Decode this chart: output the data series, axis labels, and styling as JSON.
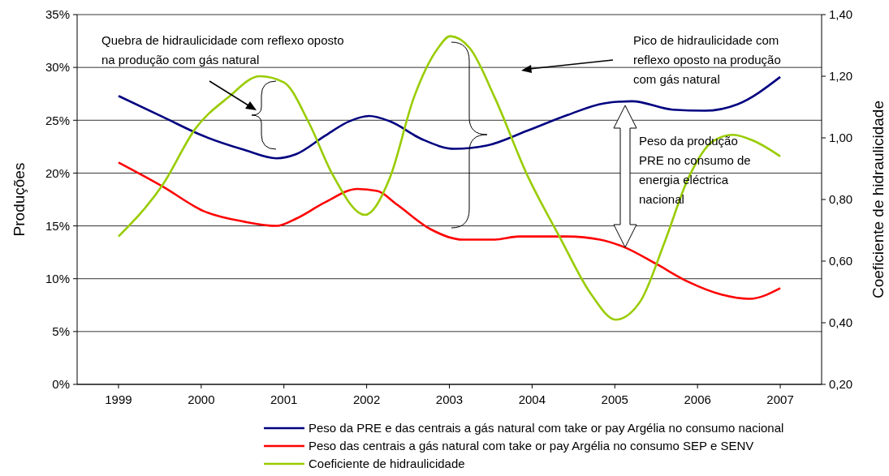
{
  "chart_data": {
    "type": "line",
    "xlabel": null,
    "ylabel": "Produções",
    "y2label": "Coeficiente de hidraulicidade",
    "xlim": [
      1998.5,
      2007.5
    ],
    "xticks": [
      1999,
      2000,
      2001,
      2002,
      2003,
      2004,
      2005,
      2006,
      2007
    ],
    "ylim": [
      0,
      35
    ],
    "yticks": [
      {
        "value": 0,
        "label": "0%"
      },
      {
        "value": 5,
        "label": "5%"
      },
      {
        "value": 10,
        "label": "10%"
      },
      {
        "value": 15,
        "label": "15%"
      },
      {
        "value": 20,
        "label": "20%"
      },
      {
        "value": 25,
        "label": "25%"
      },
      {
        "value": 30,
        "label": "30%"
      },
      {
        "value": 35,
        "label": "35%"
      }
    ],
    "y2lim": [
      0.2,
      1.4
    ],
    "y2ticks": [
      {
        "value": 0.2,
        "label": "0,20"
      },
      {
        "value": 0.4,
        "label": "0,40"
      },
      {
        "value": 0.6,
        "label": "0,60"
      },
      {
        "value": 0.8,
        "label": "0,80"
      },
      {
        "value": 1.0,
        "label": "1,00"
      },
      {
        "value": 1.2,
        "label": "1,20"
      },
      {
        "value": 1.4,
        "label": "1,40"
      }
    ],
    "grid": "y",
    "legend": "bottom",
    "marker": "none",
    "line_style": "solid",
    "series": [
      {
        "name": "Peso da PRE e das centrais a gás natural com take or pay Argélia no consumo nacional",
        "color": "#000080",
        "x": [
          1999,
          1999.54,
          2000.03,
          2000.52,
          2000.91,
          2001.15,
          2001.49,
          2001.79,
          2002.03,
          2002.28,
          2002.67,
          2003.06,
          2003.45,
          2003.94,
          2004.43,
          2004.87,
          2005.21,
          2005.7,
          2006.09,
          2006.48,
          2007
        ],
        "values": [
          27.3,
          25.3,
          23.5,
          22.2,
          21.4,
          21.8,
          23.5,
          24.9,
          25.4,
          24.9,
          23.2,
          22.3,
          22.6,
          24.0,
          25.5,
          26.6,
          26.8,
          26.0,
          25.9,
          26.5,
          29.1
        ]
      },
      {
        "name": "Peso das centrais a gás natural com take or pay Argélia no consumo SEP e SENV",
        "color": "#ff0000",
        "x": [
          1999,
          1999.54,
          2000.03,
          2000.52,
          2000.91,
          2001.15,
          2001.49,
          2001.89,
          2002.13,
          2002.37,
          2002.77,
          2003.16,
          2003.55,
          2003.84,
          2004.43,
          2004.82,
          2005.11,
          2005.5,
          2005.89,
          2006.29,
          2006.63,
          2007
        ],
        "values": [
          21.0,
          18.7,
          16.4,
          15.4,
          15.0,
          15.7,
          17.2,
          18.5,
          18.3,
          17.0,
          14.7,
          13.7,
          13.7,
          14.0,
          14.0,
          13.7,
          13.0,
          11.4,
          9.7,
          8.5,
          8.1,
          9.1
        ]
      },
      {
        "name": "Coeficiente de hidraulicidade",
        "color": "#99cc00",
        "axis": "y2",
        "x": [
          1999,
          1999.54,
          1999.93,
          2000.32,
          2000.71,
          2001,
          2001.3,
          2001.59,
          2001.98,
          2002.28,
          2002.57,
          2002.86,
          2003.01,
          2003.25,
          2003.55,
          2003.94,
          2004.33,
          2004.72,
          2005.01,
          2005.31,
          2005.6,
          2005.89,
          2006.19,
          2006.43,
          2006.68,
          2007
        ],
        "values": [
          0.68,
          0.85,
          1.03,
          1.13,
          1.2,
          1.18,
          1.05,
          0.88,
          0.75,
          0.87,
          1.13,
          1.29,
          1.33,
          1.29,
          1.13,
          0.88,
          0.68,
          0.49,
          0.41,
          0.47,
          0.66,
          0.87,
          0.99,
          1.01,
          0.99,
          0.94
        ]
      }
    ],
    "annotations": [
      "Quebra  de hidraulicidade com reflexo oposto na produção com gás natural",
      "Pico de hidraulicidade com reflexo oposto na produção com gás natural",
      "Peso da produção PRE no consumo de energia eléctrica nacional"
    ]
  }
}
